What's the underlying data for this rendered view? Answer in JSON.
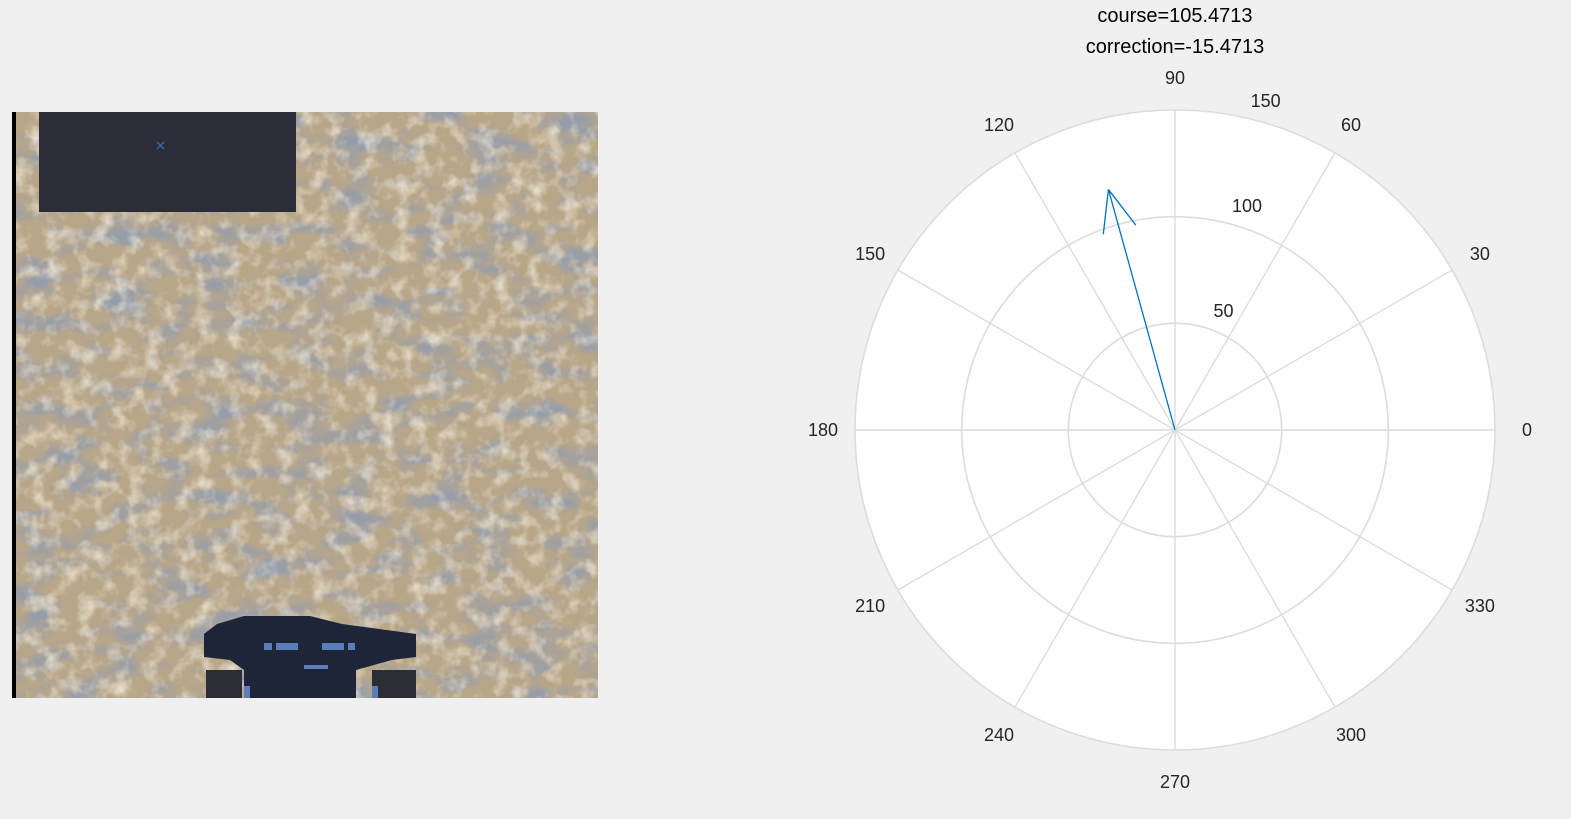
{
  "terrain": {
    "colors": {
      "ground": "#b8a688",
      "ground_dark": "#6f6350",
      "ground_light": "#d8cbb2",
      "shadow": "#4f5a66",
      "overlay": "#2b2d38",
      "rover": "#1e2538",
      "rover_accent": "#5a7fb8",
      "marker": "#2f6fb0",
      "edge": "#000000"
    },
    "marker_icon": "x-marker-icon",
    "rover_icon": "rover-icon"
  },
  "chart_data": {
    "type": "polar-compass",
    "title_lines": [
      "course=105.4713",
      "correction=-15.4713"
    ],
    "theta_ticks_deg": [
      0,
      30,
      60,
      90,
      120,
      150,
      180,
      210,
      240,
      270,
      300,
      330
    ],
    "theta_tick_labels": [
      "0",
      "30",
      "60",
      "90",
      "120",
      "150",
      "180",
      "210",
      "240",
      "270",
      "300",
      "330"
    ],
    "r_ticks": [
      50,
      100,
      150
    ],
    "r_tick_labels": [
      "50",
      "100",
      "150"
    ],
    "rlim": [
      0,
      150
    ],
    "r_tick_label_angle_deg": 80,
    "grid": true,
    "series": [
      {
        "type": "arrow",
        "theta_deg": 105.4713,
        "r": 117,
        "color": "#0072bd"
      }
    ],
    "colors": {
      "background": "#ffffff",
      "grid": "#dcdcdc"
    }
  }
}
